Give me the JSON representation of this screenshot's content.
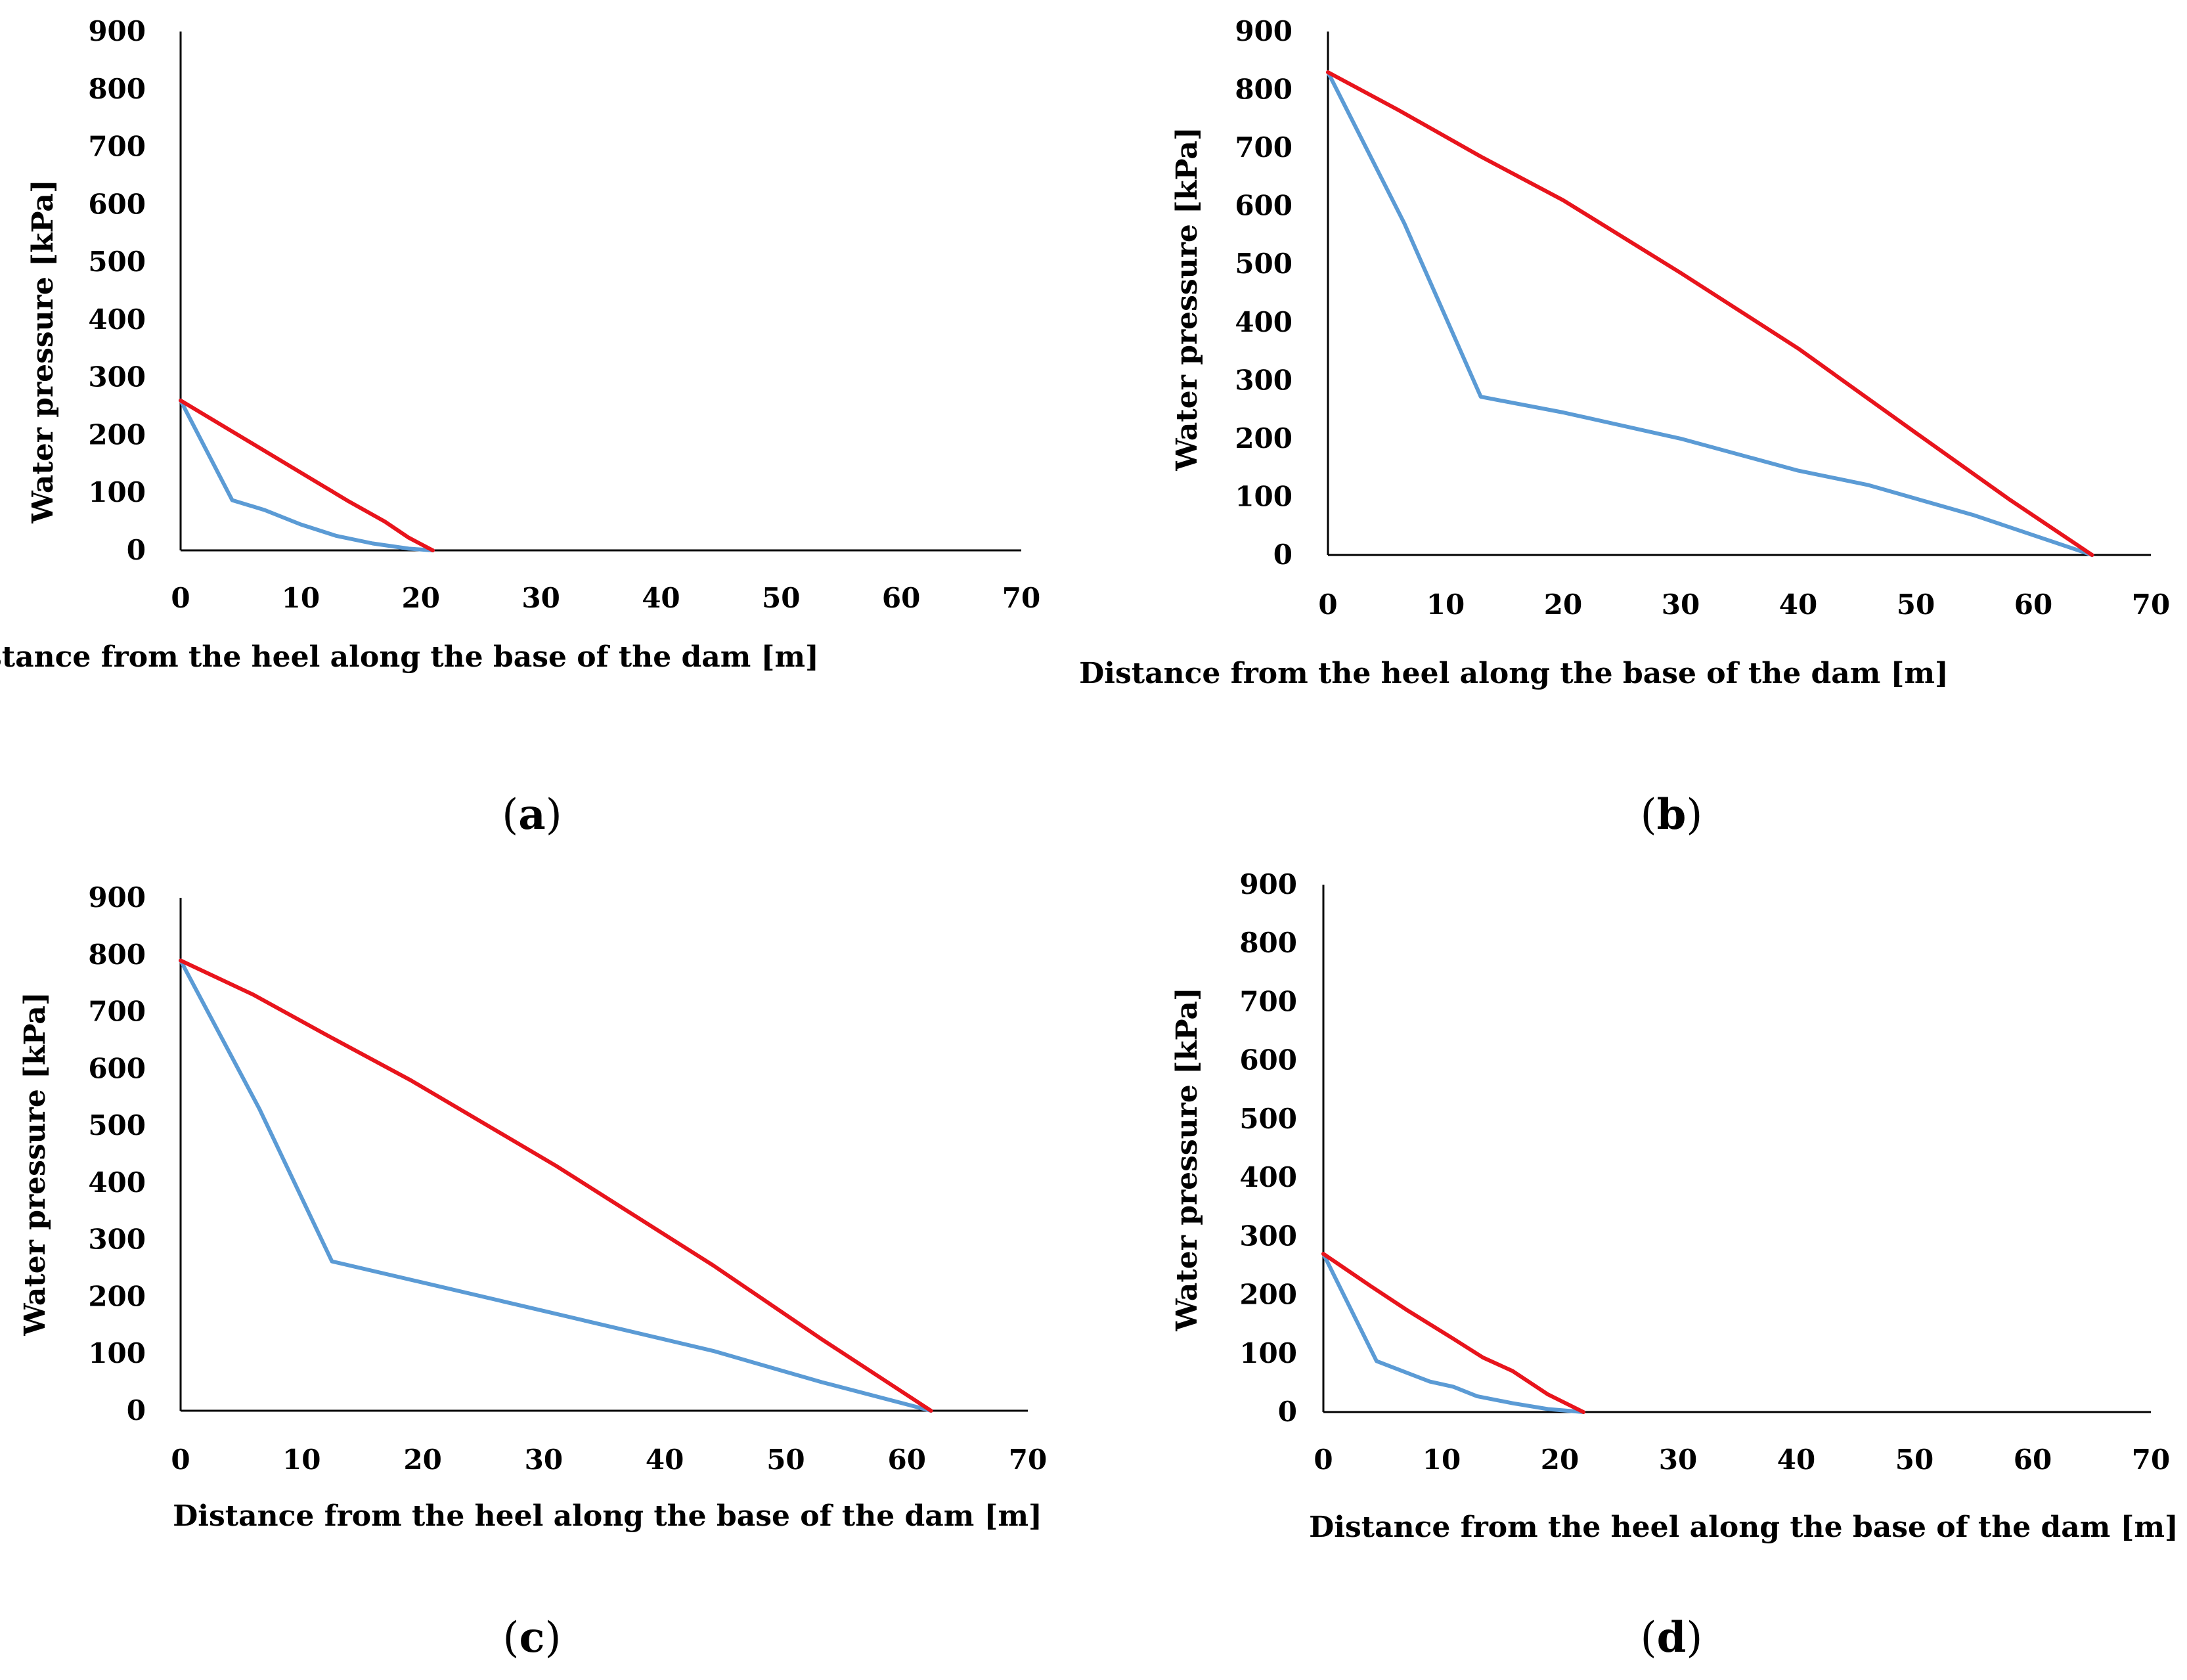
{
  "chart_data": [
    {
      "type": "line",
      "panel": "a",
      "xlabel": "Distance from the heel along the base of the dam [m]",
      "ylabel": "Water pressure [kPa]",
      "xlim": [
        0,
        70
      ],
      "ylim": [
        0,
        900
      ],
      "xticks": [
        "0",
        "10",
        "20",
        "30",
        "40",
        "50",
        "60",
        "70"
      ],
      "yticks": [
        "0",
        "100",
        "200",
        "300",
        "400",
        "500",
        "600",
        "700",
        "800",
        "900"
      ],
      "grid": false,
      "series": [
        {
          "name": "red",
          "color": "#e8141c",
          "x": [
            0,
            4,
            8,
            12,
            14,
            17,
            19,
            21
          ],
          "y": [
            260,
            210,
            160,
            110,
            85,
            50,
            22,
            0
          ]
        },
        {
          "name": "blue",
          "color": "#5b9bd5",
          "x": [
            0,
            4.3,
            7,
            10,
            13,
            16,
            19,
            21
          ],
          "y": [
            260,
            87,
            70,
            45,
            25,
            12,
            3,
            0
          ]
        }
      ]
    },
    {
      "type": "line",
      "panel": "b",
      "xlabel": "Distance from the heel along the base of the dam [m]",
      "ylabel": "Water pressure [kPa]",
      "xlim": [
        0,
        70
      ],
      "ylim": [
        0,
        900
      ],
      "xticks": [
        "0",
        "10",
        "20",
        "30",
        "40",
        "50",
        "60",
        "70"
      ],
      "yticks": [
        "0",
        "100",
        "200",
        "300",
        "400",
        "500",
        "600",
        "700",
        "800",
        "900"
      ],
      "grid": false,
      "series": [
        {
          "name": "red",
          "color": "#e8141c",
          "x": [
            0,
            6,
            13,
            20,
            30,
            40,
            50,
            58,
            65
          ],
          "y": [
            830,
            765,
            685,
            610,
            485,
            355,
            210,
            95,
            0
          ]
        },
        {
          "name": "blue",
          "color": "#5b9bd5",
          "x": [
            0,
            6.5,
            13,
            20,
            30,
            40,
            46,
            55,
            65
          ],
          "y": [
            830,
            570,
            272,
            245,
            200,
            145,
            120,
            68,
            0
          ]
        }
      ]
    },
    {
      "type": "line",
      "panel": "c",
      "xlabel": "Distance from the heel along the base of the dam [m]",
      "ylabel": "Water pressure [kPa]",
      "xlim": [
        0,
        70
      ],
      "ylim": [
        0,
        900
      ],
      "xticks": [
        "0",
        "10",
        "20",
        "30",
        "40",
        "50",
        "60",
        "70"
      ],
      "yticks": [
        "0",
        "100",
        "200",
        "300",
        "400",
        "500",
        "600",
        "700",
        "800",
        "900"
      ],
      "grid": false,
      "series": [
        {
          "name": "red",
          "color": "#e8141c",
          "x": [
            0,
            6,
            12,
            19,
            31,
            44,
            53,
            62
          ],
          "y": [
            790,
            730,
            660,
            580,
            430,
            255,
            125,
            0
          ]
        },
        {
          "name": "blue",
          "color": "#5b9bd5",
          "x": [
            0,
            6.5,
            12.5,
            20,
            30,
            38,
            44,
            53,
            62
          ],
          "y": [
            790,
            530,
            262,
            225,
            175,
            135,
            105,
            50,
            0
          ]
        }
      ]
    },
    {
      "type": "line",
      "panel": "d",
      "xlabel": "Distance from the heel along the base of the dam [m]",
      "ylabel": "Water pressure [kPa]",
      "xlim": [
        0,
        70
      ],
      "ylim": [
        0,
        900
      ],
      "xticks": [
        "0",
        "10",
        "20",
        "30",
        "40",
        "50",
        "60",
        "70"
      ],
      "yticks": [
        "0",
        "100",
        "200",
        "300",
        "400",
        "500",
        "600",
        "700",
        "800",
        "900"
      ],
      "grid": false,
      "series": [
        {
          "name": "red",
          "color": "#e8141c",
          "x": [
            0,
            4,
            7,
            11,
            13.5,
            16,
            19,
            22
          ],
          "y": [
            270,
            215,
            175,
            125,
            93,
            70,
            30,
            0
          ]
        },
        {
          "name": "blue",
          "color": "#5b9bd5",
          "x": [
            0,
            4.5,
            9,
            11,
            13,
            16,
            19,
            22
          ],
          "y": [
            270,
            87,
            52,
            43,
            27,
            15,
            5,
            0
          ]
        }
      ]
    }
  ],
  "panel_labels": {
    "a": {
      "open": "(",
      "letter": "a",
      "close": ")"
    },
    "b": {
      "open": "(",
      "letter": "b",
      "close": ")"
    },
    "c": {
      "open": "(",
      "letter": "c",
      "close": ")"
    },
    "d": {
      "open": "(",
      "letter": "d",
      "close": ")"
    }
  }
}
